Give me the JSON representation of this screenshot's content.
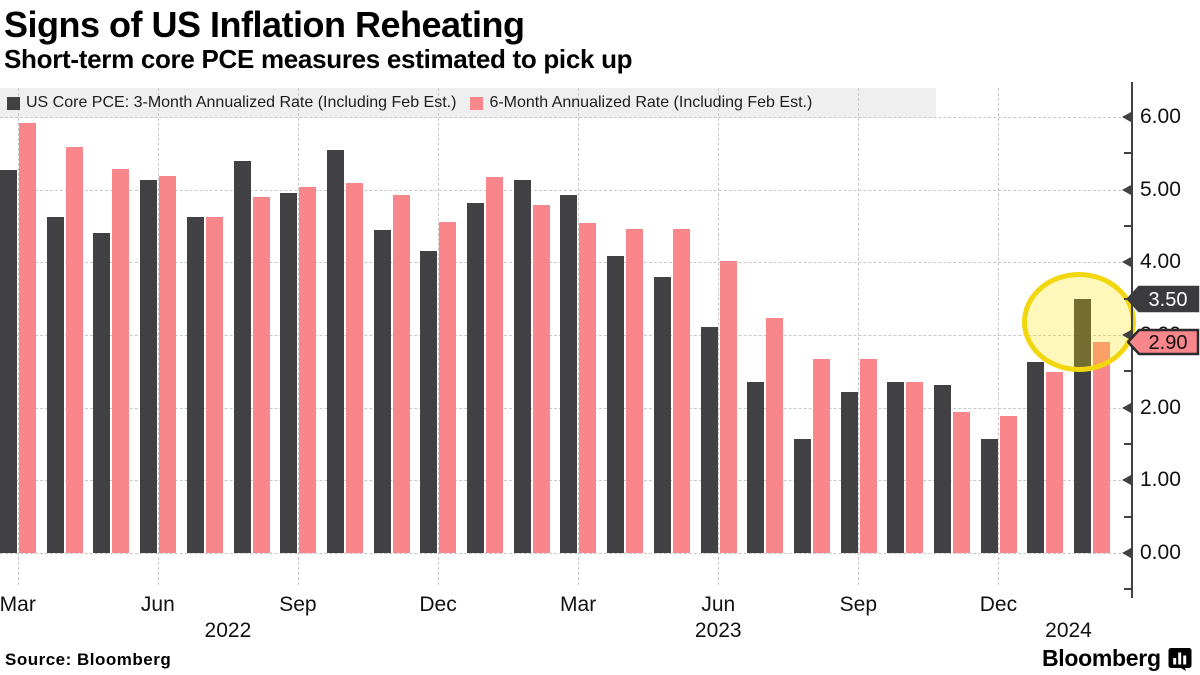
{
  "title": "Signs of US Inflation Reheating",
  "subtitle": "Short-term core PCE measures estimated to pick up",
  "source": "Source: Bloomberg",
  "brand": {
    "text": "Bloomberg",
    "icon": "bloomberg-bars-bubble-icon"
  },
  "colors": {
    "series_3m": "#414043",
    "series_6m": "#f9868b",
    "legend_bg": "#efefef",
    "grid": "#c9c9c9",
    "axis": "#414043",
    "highlight_stroke": "#f2d70e",
    "highlight_fill": "rgba(255,230,0,0.27)"
  },
  "legend": {
    "items": [
      {
        "label": "US Core PCE: 3-Month Annualized Rate (Including Feb Est.)",
        "color": "#414043"
      },
      {
        "label": "6-Month Annualized Rate (Including Feb Est.)",
        "color": "#f9868b"
      }
    ]
  },
  "y_axis": {
    "tick_labels": [
      "6.00",
      "5.00",
      "4.00",
      "3.00",
      "2.00",
      "1.00",
      "0.00"
    ],
    "min": 0,
    "max": 6,
    "major_step": 1,
    "minor_step": 0.5
  },
  "x_axis": {
    "quarter_ticks": [
      {
        "label": "Mar",
        "month_index": 0
      },
      {
        "label": "Jun",
        "month_index": 3
      },
      {
        "label": "Sep",
        "month_index": 6
      },
      {
        "label": "Dec",
        "month_index": 9
      },
      {
        "label": "Mar",
        "month_index": 12
      },
      {
        "label": "Jun",
        "month_index": 15
      },
      {
        "label": "Sep",
        "month_index": 18
      },
      {
        "label": "Dec",
        "month_index": 21
      }
    ],
    "year_labels": [
      {
        "label": "2022",
        "anchor_months": [
          3,
          6
        ]
      },
      {
        "label": "2023",
        "anchor_months": [
          15,
          15
        ]
      },
      {
        "label": "2024",
        "anchor_months": [
          22,
          23
        ]
      }
    ]
  },
  "callouts": [
    {
      "text": "3.50",
      "value": 3.5,
      "bg": "#3b3b3d",
      "text_color": "#ffffff",
      "border": "#3b3b3d"
    },
    {
      "text": "2.90",
      "value": 2.9,
      "bg": "#f9868b",
      "text_color": "#111111",
      "border": "#2b2b2d"
    }
  ],
  "highlight": {
    "shape": "ellipse",
    "months": [
      "Jan 2024",
      "Feb 2024"
    ],
    "stroke": "#f2d70e",
    "fill": "rgba(255,230,0,0.27)"
  },
  "chart_data": {
    "type": "bar",
    "title": "Signs of US Inflation Reheating",
    "subtitle": "Short-term core PCE measures estimated to pick up",
    "x": [
      "Mar 2022",
      "Apr 2022",
      "May 2022",
      "Jun 2022",
      "Jul 2022",
      "Aug 2022",
      "Sep 2022",
      "Oct 2022",
      "Nov 2022",
      "Dec 2022",
      "Jan 2023",
      "Feb 2023",
      "Mar 2023",
      "Apr 2023",
      "May 2023",
      "Jun 2023",
      "Jul 2023",
      "Aug 2023",
      "Sep 2023",
      "Oct 2023",
      "Nov 2023",
      "Dec 2023",
      "Jan 2024",
      "Feb 2024"
    ],
    "series": [
      {
        "name": "US Core PCE: 3-Month Annualized Rate (Including Feb Est.)",
        "color": "#414043",
        "values": [
          5.27,
          4.63,
          4.41,
          5.13,
          4.62,
          5.39,
          4.95,
          5.55,
          4.45,
          4.15,
          4.81,
          5.13,
          4.93,
          4.09,
          3.8,
          3.11,
          2.35,
          1.57,
          2.22,
          2.35,
          2.31,
          1.57,
          2.63,
          3.5
        ]
      },
      {
        "name": "6-Month Annualized Rate (Including Feb Est.)",
        "color": "#f9868b",
        "values": [
          5.92,
          5.59,
          5.28,
          5.19,
          4.62,
          4.9,
          5.03,
          5.09,
          4.92,
          4.55,
          5.17,
          4.79,
          4.54,
          4.46,
          4.46,
          4.02,
          3.23,
          2.67,
          2.67,
          2.35,
          1.94,
          1.88,
          2.49,
          2.9
        ]
      }
    ],
    "ylim": [
      0,
      6
    ],
    "grid": "dashed",
    "legend_position": "top-left",
    "annotations": {
      "highlighted_months": [
        "Jan 2024",
        "Feb 2024"
      ],
      "value_labels": [
        {
          "series": "3-Month",
          "month": "Feb 2024",
          "text": "3.50"
        },
        {
          "series": "6-Month",
          "month": "Feb 2024",
          "text": "2.90"
        }
      ]
    }
  }
}
